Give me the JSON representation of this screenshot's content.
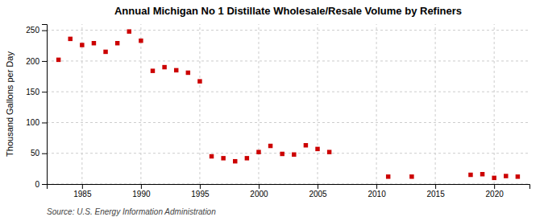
{
  "chart_data": {
    "type": "scatter",
    "title": "Annual Michigan No 1 Distillate Wholesale/Resale Volume by Refiners",
    "ylabel": "Thousand Gallons per Day",
    "source": "Source: U.S. Energy Information Administration",
    "x": [
      1983,
      1984,
      1985,
      1986,
      1987,
      1988,
      1989,
      1990,
      1991,
      1992,
      1993,
      1994,
      1995,
      1996,
      1997,
      1998,
      1999,
      2000,
      2001,
      2002,
      2003,
      2004,
      2005,
      2006,
      2011,
      2013,
      2018,
      2019,
      2020,
      2021,
      2022
    ],
    "values": [
      202,
      236,
      226,
      229,
      215,
      229,
      248,
      233,
      184,
      190,
      185,
      181,
      167,
      45,
      42,
      37,
      42,
      52,
      62,
      49,
      48,
      63,
      57,
      52,
      12,
      12,
      15,
      16,
      10,
      13,
      12
    ],
    "color": "#cc0000",
    "marker": "square",
    "xlim": [
      1982,
      2023
    ],
    "ylim": [
      0,
      260
    ],
    "xticks": [
      1985,
      1990,
      1995,
      2000,
      2005,
      2010,
      2015,
      2020
    ],
    "yticks": [
      0,
      50,
      100,
      150,
      200,
      250
    ],
    "grid": true
  }
}
